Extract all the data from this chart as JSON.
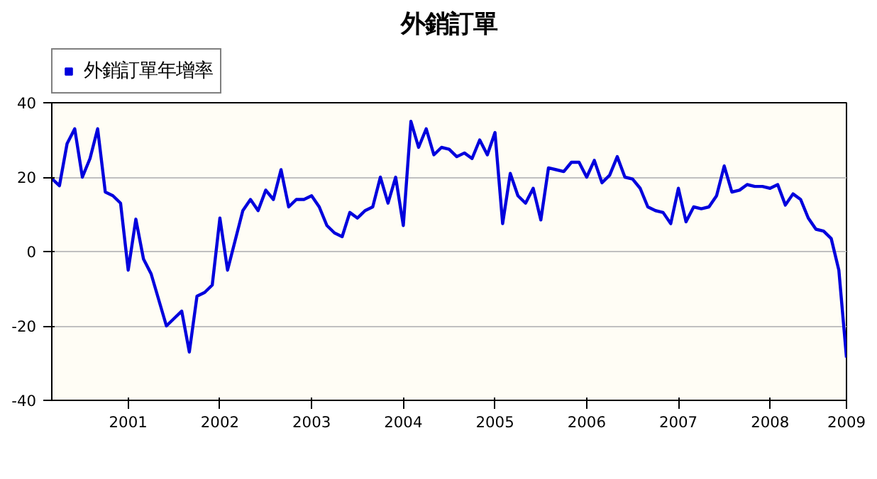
{
  "chart_data": {
    "type": "line",
    "title": "外銷訂單",
    "categories": [
      null,
      null,
      null,
      null,
      null,
      null,
      null,
      null,
      null,
      null,
      "2001",
      null,
      null,
      null,
      null,
      null,
      null,
      null,
      null,
      null,
      null,
      null,
      "2002",
      null,
      null,
      null,
      null,
      null,
      null,
      null,
      null,
      null,
      null,
      null,
      "2003",
      null,
      null,
      null,
      null,
      null,
      null,
      null,
      null,
      null,
      null,
      null,
      "2004",
      null,
      null,
      null,
      null,
      null,
      null,
      null,
      null,
      null,
      null,
      null,
      "2005",
      null,
      null,
      null,
      null,
      null,
      null,
      null,
      null,
      null,
      null,
      null,
      "2006",
      null,
      null,
      null,
      null,
      null,
      null,
      null,
      null,
      null,
      null,
      null,
      "2007",
      null,
      null,
      null,
      null,
      null,
      null,
      null,
      null,
      null,
      null,
      null,
      "2008",
      null,
      null,
      null,
      null,
      null,
      null,
      null,
      null,
      null,
      "2009"
    ],
    "series": [
      {
        "name": "外銷訂單年增率",
        "color": "#0000dd",
        "values": [
          19.6,
          17.7,
          29,
          33,
          20,
          25,
          33,
          16,
          15,
          13,
          -5,
          8.7,
          -2,
          -6,
          -13,
          -20,
          -18,
          -16,
          -27,
          -12,
          -11,
          -9,
          9,
          -5,
          3,
          11,
          14,
          11,
          16.5,
          14,
          22,
          12,
          14,
          14,
          15,
          12,
          7,
          5,
          4,
          10.5,
          9,
          11,
          12,
          20,
          13,
          20,
          7,
          35,
          28,
          33,
          26,
          28,
          27.5,
          25.5,
          26.5,
          25,
          30,
          26,
          32,
          7.5,
          21,
          15,
          13,
          17,
          8.5,
          22.5,
          22,
          21.5,
          24,
          24,
          20,
          24.5,
          18.5,
          20.5,
          25.5,
          20,
          19.5,
          17,
          12,
          11,
          10.5,
          7.5,
          17,
          8,
          12,
          11.5,
          12,
          15,
          23,
          16,
          16.5,
          18,
          17.5,
          17.5,
          17,
          18,
          12.5,
          15.5,
          14,
          9,
          6,
          5.5,
          3.5,
          -5,
          -28.5
        ]
      }
    ],
    "ylim": [
      -40,
      40
    ],
    "yticks": [
      -40,
      -20,
      0,
      20,
      40
    ],
    "grid": "y",
    "legend": "top left",
    "marker": "none",
    "line_style": "solid"
  }
}
